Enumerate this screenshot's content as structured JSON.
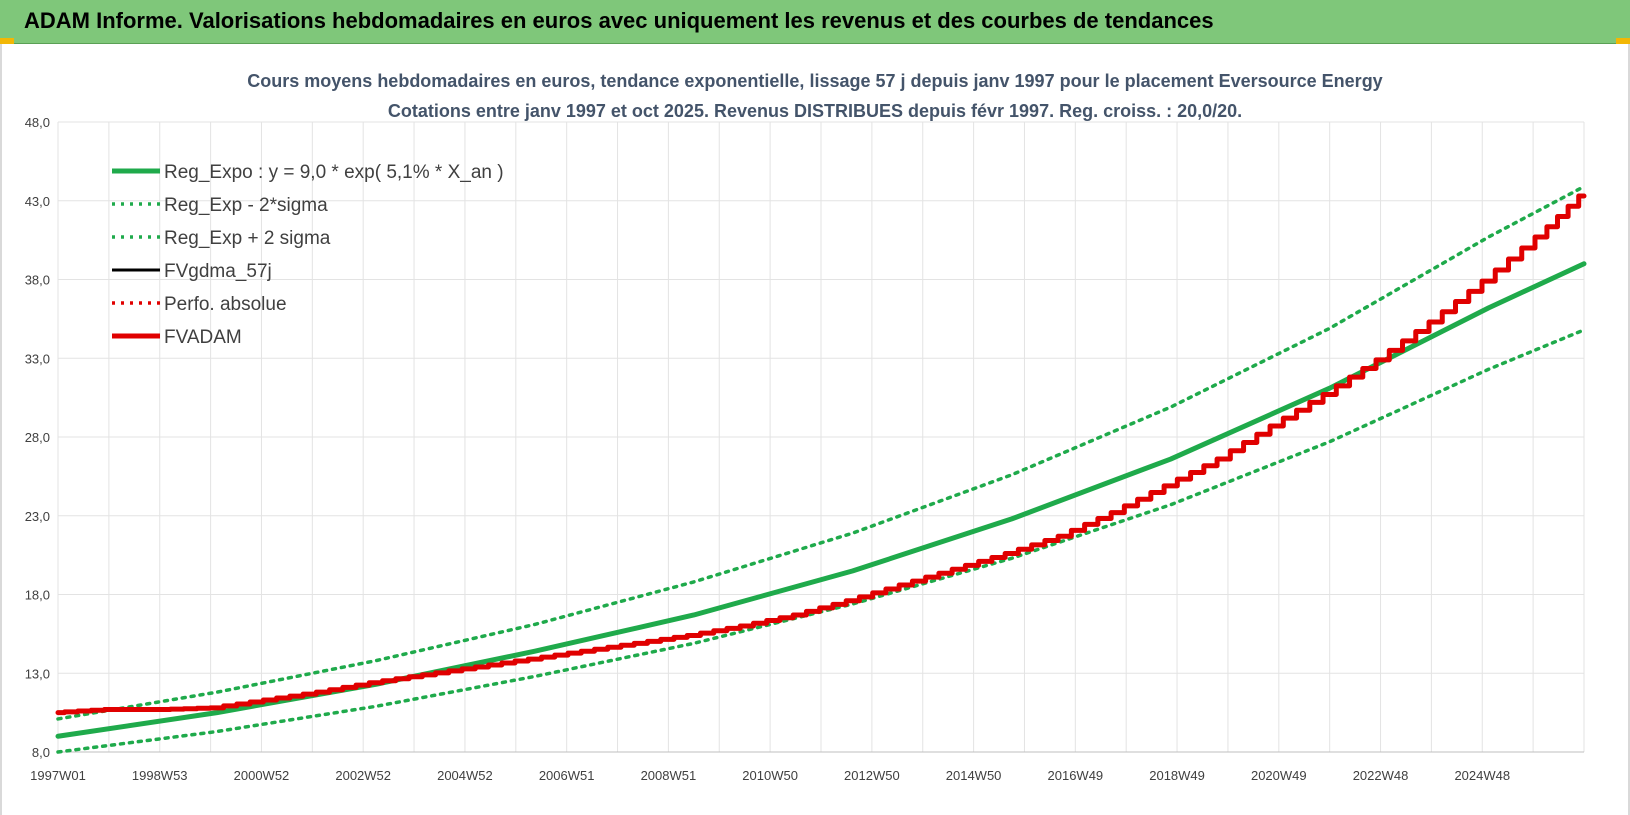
{
  "header": {
    "title": "ADAM Informe. Valorisations hebdomadaires en euros avec uniquement les revenus et des courbes de tendances"
  },
  "colors": {
    "banner": "#7fc77a",
    "trend_green": "#1faa4b",
    "black": "#000000",
    "red": "#e00000",
    "grid": "#e3e3e3"
  },
  "chart_data": {
    "type": "line",
    "title": "Cours moyens hebdomadaires en euros, tendance exponentielle, lissage 57 j depuis janv 1997 pour le placement Eversource Energy",
    "subtitle": "Cotations entre janv 1997 et oct 2025. Revenus DISTRIBUES depuis févr 1997. Reg. croiss. : 20,0/20.",
    "xlabel": "",
    "ylabel": "",
    "ylim": [
      8.0,
      48.0
    ],
    "xlim": [
      1997.0,
      2025.8
    ],
    "y_ticks": [
      "8,0",
      "13,0",
      "18,0",
      "23,0",
      "28,0",
      "33,0",
      "38,0",
      "43,0",
      "48,0"
    ],
    "x_ticks": [
      "1997W01",
      "1998W53",
      "2000W52",
      "2002W52",
      "2004W52",
      "2006W51",
      "2008W51",
      "2010W50",
      "2012W50",
      "2014W50",
      "2016W49",
      "2018W49",
      "2020W49",
      "2022W48",
      "2024W48"
    ],
    "grid": true,
    "legend_position": "top-left",
    "series": [
      {
        "name": "Reg_Expo : y = 9,0 * exp( 5,1% *  X_an )",
        "style": "solid-thick",
        "color": "#1faa4b",
        "x": [
          1997,
          2000,
          2003,
          2006,
          2009,
          2012,
          2015,
          2018,
          2021,
          2024,
          2025.8
        ],
        "y": [
          9.0,
          10.5,
          12.3,
          14.4,
          16.7,
          19.5,
          22.8,
          26.6,
          31.1,
          36.2,
          39.0
        ]
      },
      {
        "name": "Reg_Exp - 2*sigma",
        "style": "dotted",
        "color": "#1faa4b",
        "x": [
          1997,
          2000,
          2003,
          2006,
          2009,
          2012,
          2015,
          2018,
          2021,
          2024,
          2025.8
        ],
        "y": [
          8.0,
          9.3,
          10.9,
          12.8,
          14.9,
          17.4,
          20.3,
          23.7,
          27.7,
          32.3,
          34.8
        ]
      },
      {
        "name": "Reg_Exp + 2 sigma",
        "style": "dotted",
        "color": "#1faa4b",
        "x": [
          1997,
          2000,
          2003,
          2006,
          2009,
          2012,
          2015,
          2018,
          2021,
          2024,
          2025.8
        ],
        "y": [
          10.1,
          11.8,
          13.8,
          16.1,
          18.8,
          21.9,
          25.6,
          29.9,
          34.9,
          40.7,
          43.9
        ]
      },
      {
        "name": "FVgdma_57j",
        "style": "solid",
        "color": "#000000",
        "x": [
          1997,
          1998,
          1999,
          2000,
          2001,
          2002,
          2003,
          2004,
          2005,
          2006,
          2007,
          2008,
          2009,
          2010,
          2011,
          2012,
          2013,
          2014,
          2015,
          2016,
          2017,
          2018,
          2019,
          2020,
          2021,
          2022,
          2023,
          2024,
          2025,
          2025.8
        ],
        "y": [
          10.5,
          10.7,
          10.7,
          10.8,
          11.3,
          11.8,
          12.4,
          12.9,
          13.4,
          13.9,
          14.4,
          14.9,
          15.4,
          16.0,
          16.7,
          17.6,
          18.6,
          19.6,
          20.6,
          21.7,
          23.2,
          24.9,
          26.6,
          28.7,
          30.7,
          32.9,
          35.3,
          37.9,
          40.7,
          43.3
        ]
      },
      {
        "name": "Perfo. absolue",
        "style": "dotted",
        "color": "#e00000",
        "x": [
          1997,
          1998,
          1999,
          2000,
          2001,
          2002,
          2003,
          2004,
          2005,
          2006,
          2007,
          2008,
          2009,
          2010,
          2011,
          2012,
          2013,
          2014,
          2015,
          2016,
          2017,
          2018,
          2019,
          2020,
          2021,
          2022,
          2023,
          2024,
          2025,
          2025.8
        ],
        "y": [
          10.5,
          10.7,
          10.7,
          10.8,
          11.3,
          11.8,
          12.4,
          12.9,
          13.4,
          13.9,
          14.4,
          14.9,
          15.4,
          16.0,
          16.7,
          17.6,
          18.6,
          19.6,
          20.6,
          21.7,
          23.2,
          24.9,
          26.6,
          28.7,
          30.7,
          32.9,
          35.3,
          37.9,
          40.7,
          43.3
        ]
      },
      {
        "name": "FVADAM",
        "style": "solid-thick",
        "color": "#e00000",
        "x": [
          1997,
          1998,
          1999,
          2000,
          2001,
          2002,
          2003,
          2004,
          2005,
          2006,
          2007,
          2008,
          2009,
          2010,
          2011,
          2012,
          2013,
          2014,
          2015,
          2016,
          2017,
          2018,
          2019,
          2020,
          2021,
          2022,
          2023,
          2024,
          2025,
          2025.8
        ],
        "y": [
          10.5,
          10.7,
          10.7,
          10.8,
          11.3,
          11.8,
          12.4,
          12.9,
          13.4,
          13.9,
          14.4,
          14.9,
          15.4,
          16.0,
          16.7,
          17.6,
          18.6,
          19.6,
          20.6,
          21.7,
          23.2,
          24.9,
          26.6,
          28.7,
          30.7,
          32.9,
          35.3,
          37.9,
          40.7,
          43.3
        ]
      }
    ]
  }
}
